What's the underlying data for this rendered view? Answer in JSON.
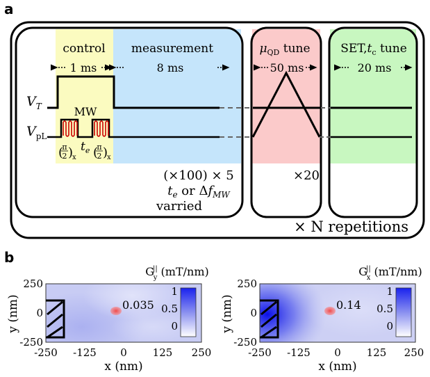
{
  "panel_labels": {
    "a": "a",
    "b": "b"
  },
  "sequence": {
    "phases": {
      "control": {
        "title": "control",
        "duration": "1 ms"
      },
      "measurement": {
        "title": "measurement",
        "duration": "8 ms"
      },
      "qd_tune": {
        "title_symbol": "μ",
        "title_sub": "QD",
        "title_suffix": " tune",
        "duration": "50 ms"
      },
      "set_tune": {
        "title_prefix": "SET,",
        "title_symbol": "t",
        "title_sub": "c",
        "title_suffix": " tune",
        "duration": "20 ms"
      }
    },
    "signals": {
      "vt": {
        "symbol": "V",
        "sub": "T"
      },
      "vpl": {
        "symbol": "V",
        "sub": "pL"
      }
    },
    "mw_label": "MW",
    "pulse_label_num": "π",
    "pulse_label_den": "2",
    "pulse_label_sub": "x",
    "wait_label": {
      "symbol": "t",
      "sub": "e"
    },
    "measurement_repeat": "(×100) × 5",
    "measurement_vary_line1_sym": "t",
    "measurement_vary_line1_sub": "e",
    "measurement_vary_line1_mid": " or Δ",
    "measurement_vary_line1_sym2": "f",
    "measurement_vary_line1_sub2": "MW",
    "measurement_vary_line2": "varried",
    "qd_repeat": "×20",
    "repetitions": "× N repetitions"
  },
  "maps": [
    {
      "id": "left",
      "title_g": "G",
      "title_sup": "||",
      "title_sub": "y",
      "title_units": " (mT/nm)",
      "dot_value": "0.035",
      "colorbar_ticks": [
        "1",
        "0.5",
        "0"
      ],
      "x_ticks": [
        "-250",
        "-125",
        "0",
        "125",
        "250"
      ],
      "y_ticks": [
        "250",
        "0",
        "-250"
      ],
      "x_label": "x (nm)",
      "y_label": "y (nm)"
    },
    {
      "id": "right",
      "title_g": "G",
      "title_sup": "||",
      "title_sub": "x",
      "title_units": " (mT/nm)",
      "dot_value": "0.14",
      "colorbar_ticks": [
        "1",
        "0.5",
        "0"
      ],
      "x_ticks": [
        "-250",
        "-125",
        "0",
        "125",
        "250"
      ],
      "y_ticks": [
        "250",
        "0",
        "-250"
      ],
      "x_label": "x (nm)",
      "y_label": "y (nm)"
    }
  ],
  "colors": {
    "control_bg": "#fbfbc0",
    "measurement_bg": "#c5e5fb",
    "qd_bg": "#fbcaca",
    "set_bg": "#c8f7c0",
    "pulse": "#cc0000",
    "map_base": "#c8ccf4",
    "colorbar_top": "#1a22ee",
    "dot": "#f06060"
  }
}
